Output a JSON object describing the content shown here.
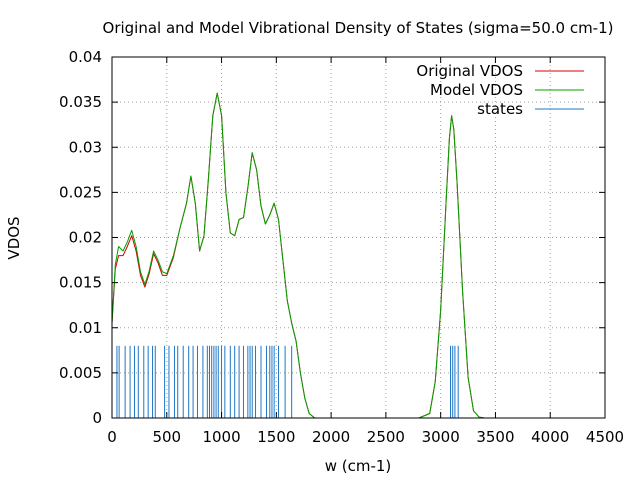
{
  "chart_data": {
    "type": "line",
    "title": "Original and Model Vibrational Density of States (sigma=50.0 cm-1)",
    "xlabel": "w (cm-1)",
    "ylabel": "VDOS",
    "xlim": [
      0,
      4500
    ],
    "ylim": [
      0,
      0.04
    ],
    "xticks": [
      0,
      500,
      1000,
      1500,
      2000,
      2500,
      3000,
      3500,
      4000,
      4500
    ],
    "xtick_labels": [
      "0",
      "500",
      "1000",
      "1500",
      "2000",
      "2500",
      "3000",
      "3500",
      "4000",
      "4500"
    ],
    "yticks": [
      0,
      0.005,
      0.01,
      0.015,
      0.02,
      0.025,
      0.03,
      0.035,
      0.04
    ],
    "ytick_labels": [
      "0",
      "0.005",
      "0.01",
      "0.015",
      "0.02",
      "0.025",
      "0.03",
      "0.035",
      "0.04"
    ],
    "grid": true,
    "legend_position": "top-right",
    "series": [
      {
        "name": "Original VDOS",
        "color": "#d40000",
        "x": [
          0,
          30,
          60,
          100,
          140,
          180,
          220,
          260,
          300,
          340,
          380,
          420,
          460,
          500,
          560,
          620,
          680,
          720,
          760,
          800,
          840,
          880,
          920,
          960,
          1000,
          1040,
          1080,
          1120,
          1160,
          1200,
          1240,
          1280,
          1320,
          1360,
          1400,
          1440,
          1480,
          1520,
          1560,
          1600,
          1640,
          1680,
          1720,
          1760,
          1800,
          1850,
          1900,
          2000,
          2500,
          2800,
          2900,
          2950,
          3000,
          3050,
          3080,
          3100,
          3120,
          3150,
          3200,
          3250,
          3300,
          3350,
          3400,
          3600,
          4500
        ],
        "y": [
          0.0105,
          0.0165,
          0.018,
          0.018,
          0.019,
          0.0202,
          0.0185,
          0.0158,
          0.0145,
          0.016,
          0.0182,
          0.0172,
          0.0158,
          0.0158,
          0.0178,
          0.021,
          0.0238,
          0.0268,
          0.0238,
          0.0185,
          0.0202,
          0.0265,
          0.0335,
          0.036,
          0.0335,
          0.025,
          0.0205,
          0.0202,
          0.022,
          0.0222,
          0.0255,
          0.0294,
          0.0275,
          0.0235,
          0.0215,
          0.0225,
          0.0238,
          0.022,
          0.0175,
          0.013,
          0.0105,
          0.0085,
          0.005,
          0.0022,
          0.0005,
          0.0,
          0.0,
          0.0,
          0.0,
          0.0,
          0.0005,
          0.004,
          0.012,
          0.024,
          0.031,
          0.0335,
          0.032,
          0.026,
          0.014,
          0.0045,
          0.0008,
          0.0001,
          0.0,
          0.0,
          0.0
        ]
      },
      {
        "name": "Model VDOS",
        "color": "#00a000",
        "x": [
          0,
          30,
          60,
          100,
          140,
          180,
          220,
          260,
          300,
          340,
          380,
          420,
          460,
          500,
          560,
          620,
          680,
          720,
          760,
          800,
          840,
          880,
          920,
          960,
          1000,
          1040,
          1080,
          1120,
          1160,
          1200,
          1240,
          1280,
          1320,
          1360,
          1400,
          1440,
          1480,
          1520,
          1560,
          1600,
          1640,
          1680,
          1720,
          1760,
          1800,
          1850,
          1900,
          2000,
          2500,
          2800,
          2900,
          2950,
          3000,
          3050,
          3080,
          3100,
          3120,
          3150,
          3200,
          3250,
          3300,
          3350,
          3400,
          3600,
          4500
        ],
        "y": [
          0.0105,
          0.017,
          0.019,
          0.0185,
          0.0195,
          0.0208,
          0.019,
          0.0162,
          0.0148,
          0.0163,
          0.0185,
          0.0175,
          0.0162,
          0.016,
          0.018,
          0.021,
          0.0238,
          0.0268,
          0.0238,
          0.0185,
          0.0202,
          0.0265,
          0.0335,
          0.036,
          0.0335,
          0.025,
          0.0205,
          0.0202,
          0.022,
          0.0222,
          0.0255,
          0.0294,
          0.0275,
          0.0235,
          0.0215,
          0.0225,
          0.0238,
          0.022,
          0.0175,
          0.013,
          0.0105,
          0.0085,
          0.005,
          0.0022,
          0.0005,
          0.0,
          0.0,
          0.0,
          0.0,
          0.0,
          0.0005,
          0.004,
          0.012,
          0.024,
          0.031,
          0.0335,
          0.032,
          0.026,
          0.014,
          0.0045,
          0.0008,
          0.0001,
          0.0,
          0.0,
          0.0
        ]
      },
      {
        "name": "states",
        "color": "#1f77c8",
        "type": "impulse",
        "height": 0.008,
        "x": [
          45,
          65,
          120,
          165,
          205,
          240,
          290,
          330,
          370,
          395,
          480,
          520,
          570,
          600,
          650,
          700,
          740,
          780,
          830,
          870,
          890,
          910,
          930,
          950,
          970,
          1000,
          1030,
          1080,
          1120,
          1160,
          1200,
          1240,
          1260,
          1280,
          1310,
          1360,
          1410,
          1440,
          1460,
          1480,
          1520,
          1580,
          1640,
          3090,
          3110,
          3130,
          3160
        ]
      }
    ]
  }
}
